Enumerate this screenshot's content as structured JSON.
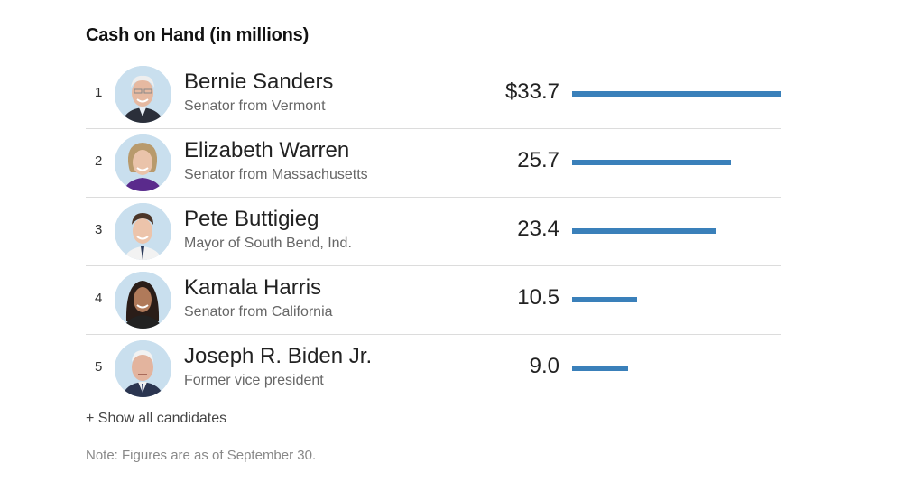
{
  "title": "Cash on Hand (in millions)",
  "show_all_label": "+ Show all candidates",
  "note": "Note: Figures are as of September 30.",
  "colors": {
    "bar": "#3a80ba",
    "avatar_bg": "#c9dfee"
  },
  "candidates": [
    {
      "rank": "1",
      "name": "Bernie Sanders",
      "desc": "Senator from Vermont",
      "value_label": "$33.7",
      "value": 33.7,
      "avatar": "bernie-sanders-photo"
    },
    {
      "rank": "2",
      "name": "Elizabeth Warren",
      "desc": "Senator from Massachusetts",
      "value_label": "25.7",
      "value": 25.7,
      "avatar": "elizabeth-warren-photo"
    },
    {
      "rank": "3",
      "name": "Pete Buttigieg",
      "desc": "Mayor of South Bend, Ind.",
      "value_label": "23.4",
      "value": 23.4,
      "avatar": "pete-buttigieg-photo"
    },
    {
      "rank": "4",
      "name": "Kamala Harris",
      "desc": "Senator from California",
      "value_label": "10.5",
      "value": 10.5,
      "avatar": "kamala-harris-photo"
    },
    {
      "rank": "5",
      "name": "Joseph R. Biden Jr.",
      "desc": "Former vice president",
      "value_label": "9.0",
      "value": 9.0,
      "avatar": "joseph-biden-photo"
    }
  ],
  "chart_data": {
    "type": "bar",
    "title": "Cash on Hand (in millions)",
    "categories": [
      "Bernie Sanders",
      "Elizabeth Warren",
      "Pete Buttigieg",
      "Kamala Harris",
      "Joseph R. Biden Jr."
    ],
    "values": [
      33.7,
      25.7,
      23.4,
      10.5,
      9.0
    ],
    "xlabel": "",
    "ylabel": "",
    "xlim": [
      0,
      33.7
    ],
    "orientation": "horizontal",
    "grid": false,
    "unit": "$ millions"
  }
}
